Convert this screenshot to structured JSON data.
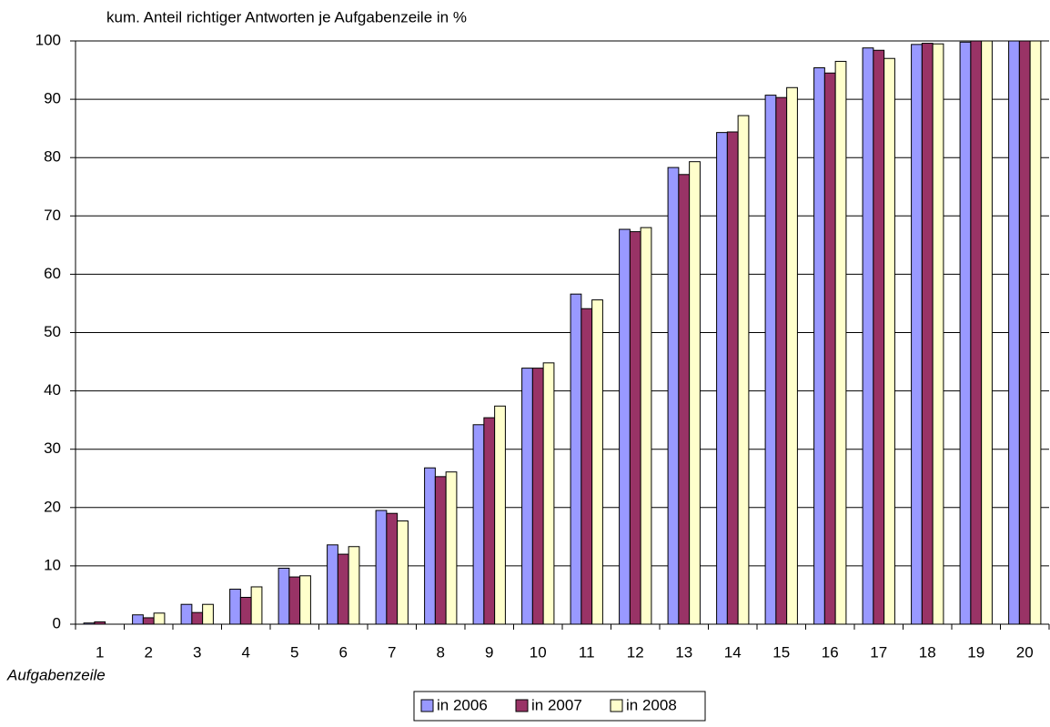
{
  "chart_data": {
    "type": "bar",
    "title": "kum. Anteil richtiger Antworten je Aufgabenzeile in %",
    "x_label": "Aufgabenzeile",
    "categories": [
      "1",
      "2",
      "3",
      "4",
      "5",
      "6",
      "7",
      "8",
      "9",
      "10",
      "11",
      "12",
      "13",
      "14",
      "15",
      "16",
      "17",
      "18",
      "19",
      "20"
    ],
    "series": [
      {
        "name": "in 2006",
        "color": "#9999ff",
        "values": [
          0.2,
          1.6,
          3.4,
          6.0,
          9.6,
          13.6,
          19.5,
          26.8,
          34.2,
          43.9,
          56.6,
          67.7,
          78.3,
          84.3,
          90.7,
          95.4,
          98.8,
          99.4,
          99.8,
          100
        ]
      },
      {
        "name": "in 2007",
        "color": "#993366",
        "values": [
          0.4,
          1.1,
          2.0,
          4.6,
          8.1,
          12.0,
          19.0,
          25.3,
          35.4,
          43.9,
          54.1,
          67.3,
          77.1,
          84.4,
          90.3,
          94.5,
          98.4,
          99.6,
          100,
          100
        ]
      },
      {
        "name": "in 2008",
        "color": "#ffffcc",
        "values": [
          0,
          1.9,
          3.4,
          6.4,
          8.3,
          13.3,
          17.7,
          26.1,
          37.4,
          44.8,
          55.6,
          68.0,
          79.3,
          87.2,
          92.0,
          96.5,
          97.0,
          99.5,
          100,
          100
        ]
      }
    ],
    "ylim": [
      0,
      100
    ],
    "yticks": [
      0,
      10,
      20,
      30,
      40,
      50,
      60,
      70,
      80,
      90,
      100
    ],
    "grid": true,
    "legend": "bottom"
  }
}
